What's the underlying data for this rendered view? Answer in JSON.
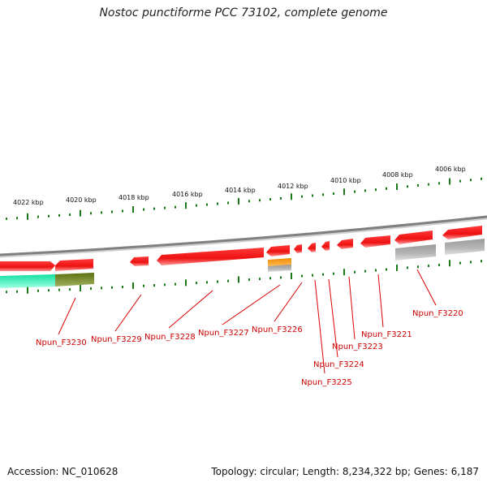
{
  "title": "Nostoc punctiforme PCC 73102, complete genome",
  "footer": {
    "accession": "Accession: NC_010628",
    "summary": "Topology: circular; Length: 8,234,322 bp; Genes: 6,187"
  },
  "colors": {
    "backbone": "#808080",
    "tick": "#1a7a1a",
    "gene_red": "#ee1111",
    "gene_orange": "#ee8800",
    "gene_gray": "#a8a8a8",
    "gene_teal": "#22eeaa",
    "gene_olive": "#6b7f1a",
    "label": "#cc0000"
  },
  "kbp_labels": [
    "4022 kbp",
    "4020 kbp",
    "4018 kbp",
    "4016 kbp",
    "4014 kbp",
    "4012 kbp",
    "4010 kbp",
    "4008 kbp",
    "4006 kbp"
  ],
  "gene_labels": [
    "Npun_F3230",
    "Npun_F3229",
    "Npun_F3228",
    "Npun_F3227",
    "Npun_F3226",
    "Npun_F3225",
    "Npun_F3224",
    "Npun_F3223",
    "Npun_F3221",
    "Npun_F3220"
  ]
}
